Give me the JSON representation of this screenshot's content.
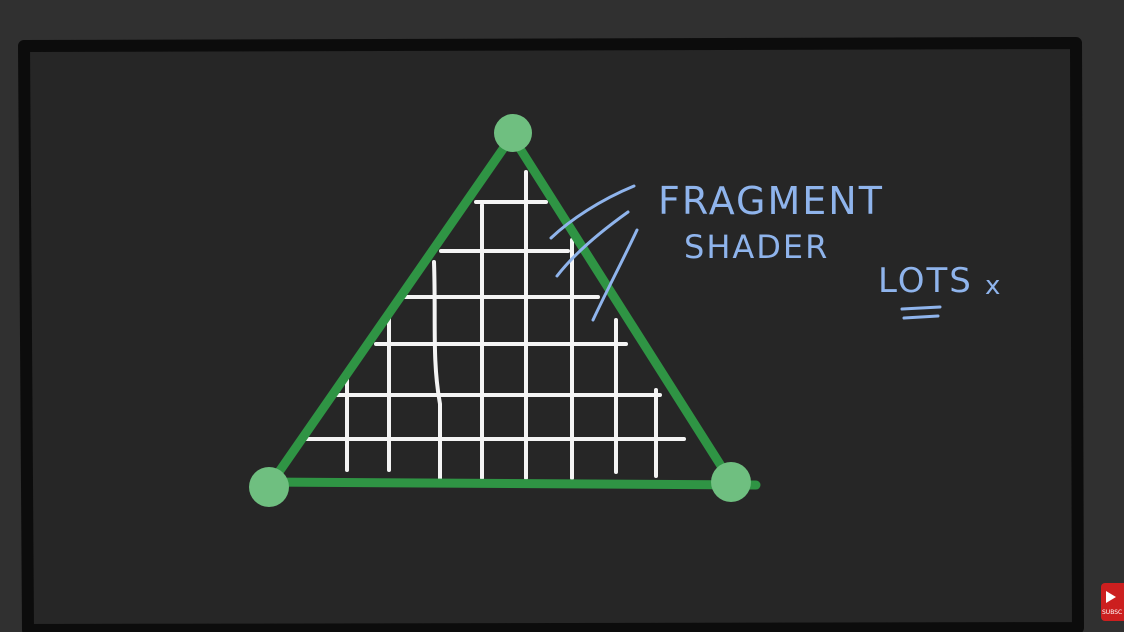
{
  "labels": {
    "title_line1": "FRAGMENT",
    "title_line2": "SHADER",
    "side_note": "LOTS",
    "side_note_suffix": "x",
    "subscribe": "SUBSC"
  },
  "colors": {
    "background": "#2f2f2f",
    "frame": "#0c0c0c",
    "triangle": "#2f9444",
    "vertex": "#6fbf80",
    "grid": "#f4f4f4",
    "annotation": "#8fb4ec",
    "subscribe_badge": "#cc1f1f"
  },
  "icons": {
    "vertex_marker": "dot",
    "subscribe_badge": "play-icon"
  }
}
